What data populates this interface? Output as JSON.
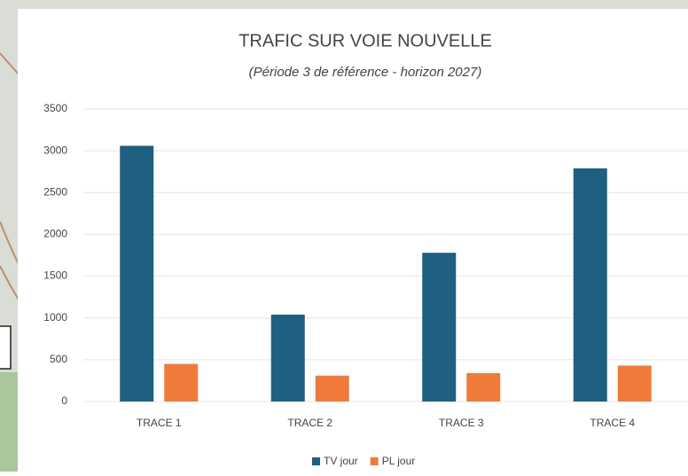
{
  "chart_data": {
    "type": "bar",
    "title": "TRAFIC SUR VOIE NOUVELLE",
    "subtitle": "(Période 3 de référence - horizon 2027)",
    "categories": [
      "TRACE 1",
      "TRACE 2",
      "TRACE 3",
      "TRACE 4"
    ],
    "series": [
      {
        "name": "TV jour",
        "color": "#1f5f80",
        "values": [
          3060,
          1040,
          1780,
          2790
        ]
      },
      {
        "name": "PL jour",
        "color": "#f07a3a",
        "values": [
          450,
          310,
          340,
          430
        ]
      }
    ],
    "ylim": [
      0,
      3500
    ],
    "yticks": [
      0,
      500,
      1000,
      1500,
      2000,
      2500,
      3000,
      3500
    ],
    "grid": true,
    "legend": "bottom"
  }
}
